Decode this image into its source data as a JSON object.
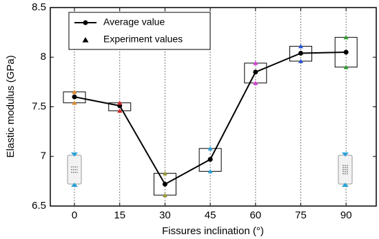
{
  "chart_data": {
    "type": "line",
    "x_label": "Fissures inclination (°)",
    "y_label": "Elastic modulus (GPa)",
    "x": [
      0,
      15,
      30,
      45,
      60,
      75,
      90
    ],
    "xlim": [
      -8,
      100
    ],
    "xticks": [
      0,
      15,
      30,
      45,
      60,
      75,
      90
    ],
    "ylim": [
      6.5,
      8.5
    ],
    "yticks": [
      6.5,
      7,
      7.5,
      8,
      8.5
    ],
    "grid": "x",
    "legend": "upper left",
    "series": [
      {
        "name": "Average value",
        "color": "#000000",
        "values": [
          7.6,
          7.51,
          6.72,
          6.97,
          7.85,
          8.04,
          8.05
        ]
      },
      {
        "name": "Experiment values",
        "color": "#000000",
        "style": "scatter",
        "values": [
          [
            7.65,
            7.54
          ],
          [
            7.54,
            7.46
          ],
          [
            6.83,
            6.61
          ],
          [
            7.08,
            6.85
          ],
          [
            7.94,
            7.74
          ],
          [
            8.11,
            7.96
          ],
          [
            8.2,
            7.9
          ]
        ],
        "marker_colors": [
          "#e08a2c",
          "#d62728",
          "#9a9a3a",
          "#2aa0d8",
          "#d63fd6",
          "#2a52d8",
          "#2ca02c"
        ]
      }
    ]
  }
}
